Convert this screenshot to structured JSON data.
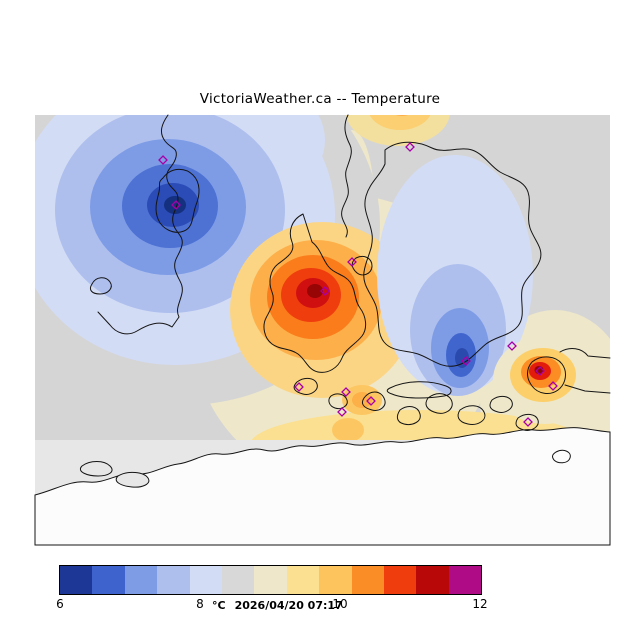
{
  "title": "VictoriaWeather.ca -- Temperature",
  "map": {
    "background_color": "#d5d5d5",
    "outside_background_color": "#e7e7e7",
    "land_color": "#fcfcfc",
    "coastline_color": "#151515",
    "station_marker_color": "#a800a8"
  },
  "colorbar": {
    "unit": "°C",
    "timestamp": "2026/04/20 07:17",
    "ticks": [
      "6",
      "8",
      "10",
      "12"
    ],
    "colors": [
      "#1c3796",
      "#3f63cc",
      "#7e9ce6",
      "#aebfee",
      "#d3dcf5",
      "#d8d8d8",
      "#eee7c9",
      "#fbe092",
      "#fdc35c",
      "#fb8d26",
      "#ef3d0e",
      "#b80808",
      "#b00b86"
    ]
  },
  "chart_data": {
    "type": "heatmap",
    "title": "VictoriaWeather.ca -- Temperature",
    "variable": "Temperature",
    "unit": "°C",
    "timestamp": "2026/04/20 07:17",
    "scale_min": 6,
    "scale_max": 12,
    "scale_ticks": [
      6,
      8,
      10,
      12
    ],
    "scale_colors": [
      "#1c3796",
      "#3f63cc",
      "#7e9ce6",
      "#aebfee",
      "#d3dcf5",
      "#d8d8d8",
      "#eee7c9",
      "#fbe092",
      "#fdc35c",
      "#fb8d26",
      "#ef3d0e",
      "#b80808",
      "#b00b86"
    ],
    "legend_position": "bottom",
    "features": [
      {
        "name": "cold-pool-northwest",
        "approx_value_c": 6.5
      },
      {
        "name": "warm-pool-center",
        "approx_value_c": 11.5
      },
      {
        "name": "cold-pool-east",
        "approx_value_c": 7.5
      },
      {
        "name": "warm-spot-east",
        "approx_value_c": 11.5
      },
      {
        "name": "background-field",
        "approx_value_c": 8.5
      }
    ]
  }
}
